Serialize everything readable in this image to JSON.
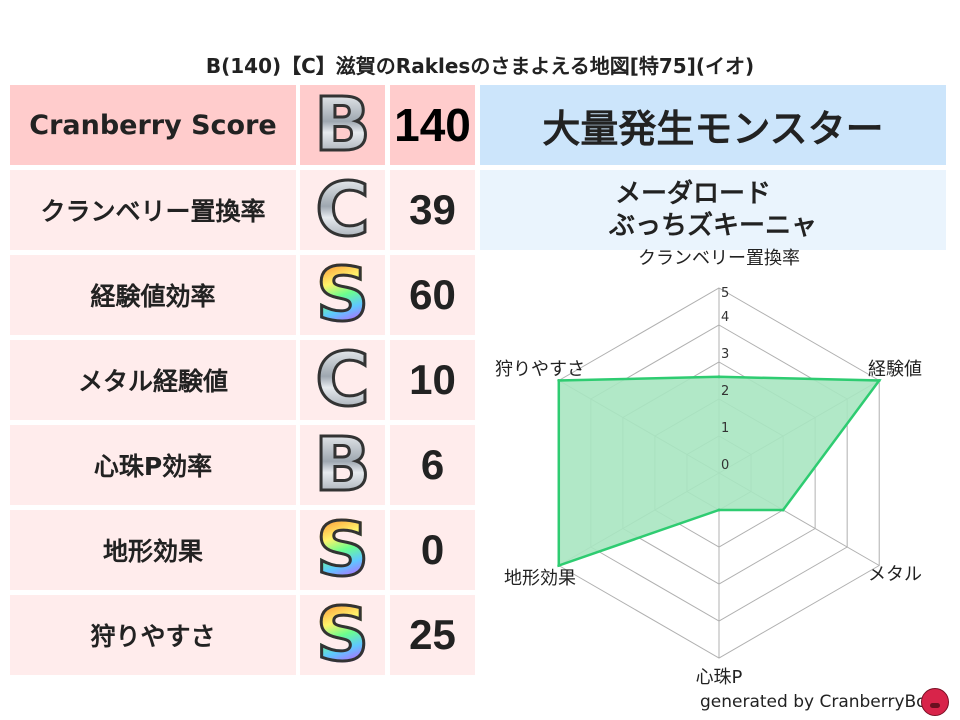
{
  "title": "B(140)【C】滋賀のRaklesのさまよえる地図[特75](イオ)",
  "score_table": {
    "header": {
      "label": "Cranberry Score",
      "grade": "B",
      "value": "140"
    },
    "rows": [
      {
        "label": "クランベリー置換率",
        "grade": "C",
        "value": "39"
      },
      {
        "label": "経験値効率",
        "grade": "S",
        "value": "60"
      },
      {
        "label": "メタル経験値",
        "grade": "C",
        "value": "10"
      },
      {
        "label": "心珠P効率",
        "grade": "B",
        "value": "6"
      },
      {
        "label": "地形効果",
        "grade": "S",
        "value": "0"
      },
      {
        "label": "狩りやすさ",
        "grade": "S",
        "value": "25"
      }
    ]
  },
  "monster": {
    "heading": "大量発生モンスター",
    "names": [
      "メーダロード",
      "ぶっちズキーニャ"
    ]
  },
  "chart_data": {
    "type": "radar",
    "axes": [
      "クランベリー置換率",
      "経験値",
      "メタル",
      "心珠P",
      "地形効果",
      "狩りやすさ"
    ],
    "values": [
      2.6,
      5,
      2,
      1,
      5,
      5
    ],
    "range": [
      0,
      5
    ],
    "ticks": [
      "0",
      "1",
      "2",
      "3",
      "4",
      "5"
    ],
    "grid": true,
    "colors": {
      "line": "#2ecc71",
      "fill": "#a8e6c1",
      "grid": "#b0b0b0"
    }
  },
  "colors": {
    "header_pink": "#ffcccc",
    "row_pink": "#ffecec",
    "header_blue": "#cce5fb",
    "box_blue": "#eaf4fd"
  },
  "footer": {
    "text": "generated by CranberryBot",
    "icon": "cranberry-bot-icon"
  }
}
